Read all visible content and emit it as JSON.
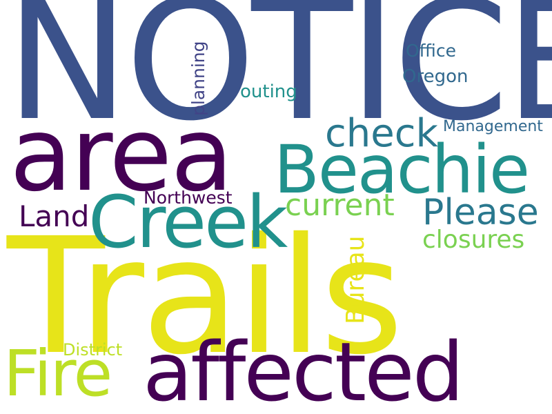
{
  "word_cloud": {
    "words": {
      "notice": {
        "text": "NOTICE",
        "color": "#3b528b"
      },
      "trails": {
        "text": "Trails",
        "color": "#e7e419"
      },
      "area": {
        "text": "area",
        "color": "#440154"
      },
      "affected": {
        "text": "affected",
        "color": "#440154"
      },
      "beachie": {
        "text": "Beachie",
        "color": "#21918c"
      },
      "creek": {
        "text": "Creek",
        "color": "#21918c"
      },
      "fire": {
        "text": "Fire",
        "color": "#bddf26"
      },
      "please": {
        "text": "Please",
        "color": "#2a788e"
      },
      "check": {
        "text": "check",
        "color": "#2a788e"
      },
      "current": {
        "text": "current",
        "color": "#7ad151"
      },
      "closures": {
        "text": "closures",
        "color": "#7ad151"
      },
      "land": {
        "text": "Land",
        "color": "#440154"
      },
      "bureau": {
        "text": "Bureau",
        "color": "#e7e419"
      },
      "northwest": {
        "text": "Northwest",
        "color": "#440154"
      },
      "management": {
        "text": "Management",
        "color": "#31688e"
      },
      "office": {
        "text": "Office",
        "color": "#31688e"
      },
      "oregon": {
        "text": "Oregon",
        "color": "#31688e"
      },
      "outing": {
        "text": "outing",
        "color": "#21918c"
      },
      "planning": {
        "text": "planning",
        "color": "#414487"
      },
      "district": {
        "text": "District",
        "color": "#bddf26"
      }
    }
  }
}
